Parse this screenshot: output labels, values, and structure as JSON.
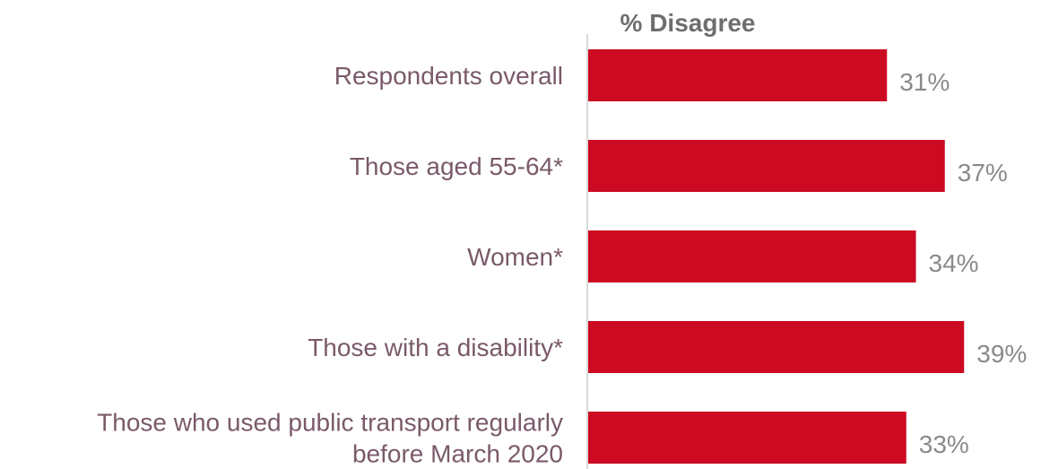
{
  "chart_data": {
    "type": "bar",
    "orientation": "horizontal",
    "title": "% Disagree",
    "categories": [
      "Respondents overall",
      "Those aged 55-64*",
      "Women*",
      "Those with a disability*",
      "Those who used public transport regularly before March 2020"
    ],
    "category_label_lines": [
      [
        "Respondents overall"
      ],
      [
        "Those aged 55-64*"
      ],
      [
        "Women*"
      ],
      [
        "Those with a disability*"
      ],
      [
        "Those who used public transport regularly",
        "before March 2020"
      ]
    ],
    "values": [
      31,
      37,
      34,
      39,
      33
    ],
    "value_labels": [
      "31%",
      "37%",
      "34%",
      "39%",
      "33%"
    ],
    "unit": "%",
    "bar_color": "#cc0a22",
    "category_label_color": "#7a5a6a",
    "value_label_color": "#8a8a8a",
    "axis_color": "#d9d9d9",
    "grid": false,
    "legend": false
  }
}
